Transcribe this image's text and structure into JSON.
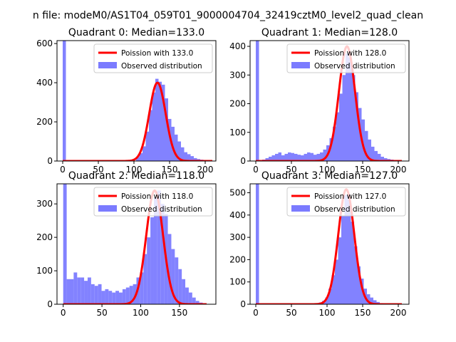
{
  "figure": {
    "suptitle": "n file: modeM0/AS1T04_059T01_9000004704_32419cztM0_level2_quad_clean"
  },
  "colors": {
    "histogram": "#7b7bff",
    "poisson": "#ff0000",
    "axis": "#000000",
    "background": "#ffffff"
  },
  "chart_data": [
    {
      "type": "bar",
      "subtype": "histogram+line",
      "title": "Quadrant 0: Median=133.0",
      "xlim": [
        -8,
        215
      ],
      "ylim": [
        0,
        615
      ],
      "xticks": [
        0,
        50,
        100,
        150,
        200
      ],
      "yticks": [
        0,
        200,
        400,
        600
      ],
      "legend": {
        "placement": "top-right",
        "entries": [
          "Poission with 133.0",
          "Observed distribution"
        ]
      },
      "histogram": {
        "name": "Observed distribution",
        "bin_width": 4.5,
        "bins": [
          {
            "x": 0,
            "count": 615
          },
          {
            "x": 103,
            "count": 20
          },
          {
            "x": 107.5,
            "count": 40
          },
          {
            "x": 112,
            "count": 75
          },
          {
            "x": 116.5,
            "count": 150
          },
          {
            "x": 121,
            "count": 260
          },
          {
            "x": 125.5,
            "count": 350
          },
          {
            "x": 130,
            "count": 420
          },
          {
            "x": 134.5,
            "count": 405
          },
          {
            "x": 139,
            "count": 390
          },
          {
            "x": 143.5,
            "count": 320
          },
          {
            "x": 148,
            "count": 215
          },
          {
            "x": 152.5,
            "count": 175
          },
          {
            "x": 157,
            "count": 135
          },
          {
            "x": 161.5,
            "count": 100
          },
          {
            "x": 166,
            "count": 70
          },
          {
            "x": 170.5,
            "count": 45
          },
          {
            "x": 175,
            "count": 35
          },
          {
            "x": 179.5,
            "count": 25
          },
          {
            "x": 184,
            "count": 15
          },
          {
            "x": 188.5,
            "count": 10
          },
          {
            "x": 193,
            "count": 7
          },
          {
            "x": 197.5,
            "count": 5
          },
          {
            "x": 202,
            "count": 3
          },
          {
            "x": 206.5,
            "count": 2
          }
        ]
      },
      "line": {
        "name": "Poission with 133.0",
        "lambda": 133.0,
        "peak": 400,
        "x_range": [
          0,
          210
        ]
      }
    },
    {
      "type": "bar",
      "subtype": "histogram+line",
      "title": "Quadrant 1: Median=128.0",
      "xlim": [
        -8,
        215
      ],
      "ylim": [
        0,
        420
      ],
      "xticks": [
        0,
        50,
        100,
        150,
        200
      ],
      "yticks": [
        0,
        100,
        200,
        300,
        400
      ],
      "legend": {
        "placement": "top-right",
        "entries": [
          "Poission with 128.0",
          "Observed distribution"
        ]
      },
      "histogram": {
        "name": "Observed distribution",
        "bin_width": 4.5,
        "bins": [
          {
            "x": 0,
            "count": 420
          },
          {
            "x": 9,
            "count": 5
          },
          {
            "x": 13.5,
            "count": 10
          },
          {
            "x": 18,
            "count": 15
          },
          {
            "x": 22.5,
            "count": 20
          },
          {
            "x": 27,
            "count": 25
          },
          {
            "x": 31.5,
            "count": 30
          },
          {
            "x": 36,
            "count": 20
          },
          {
            "x": 40.5,
            "count": 25
          },
          {
            "x": 45,
            "count": 30
          },
          {
            "x": 49.5,
            "count": 28
          },
          {
            "x": 54,
            "count": 25
          },
          {
            "x": 58.5,
            "count": 22
          },
          {
            "x": 63,
            "count": 20
          },
          {
            "x": 67.5,
            "count": 25
          },
          {
            "x": 72,
            "count": 30
          },
          {
            "x": 76.5,
            "count": 28
          },
          {
            "x": 81,
            "count": 22
          },
          {
            "x": 85.5,
            "count": 25
          },
          {
            "x": 90,
            "count": 30
          },
          {
            "x": 94.5,
            "count": 40
          },
          {
            "x": 99,
            "count": 55
          },
          {
            "x": 103.5,
            "count": 80
          },
          {
            "x": 108,
            "count": 120
          },
          {
            "x": 112.5,
            "count": 170
          },
          {
            "x": 117,
            "count": 235
          },
          {
            "x": 121.5,
            "count": 300
          },
          {
            "x": 126,
            "count": 375
          },
          {
            "x": 130.5,
            "count": 360
          },
          {
            "x": 135,
            "count": 300
          },
          {
            "x": 139.5,
            "count": 240
          },
          {
            "x": 144,
            "count": 185
          },
          {
            "x": 148.5,
            "count": 145
          },
          {
            "x": 153,
            "count": 105
          },
          {
            "x": 157.5,
            "count": 75
          },
          {
            "x": 162,
            "count": 50
          },
          {
            "x": 166.5,
            "count": 35
          },
          {
            "x": 171,
            "count": 25
          },
          {
            "x": 175.5,
            "count": 15
          },
          {
            "x": 180,
            "count": 10
          },
          {
            "x": 184.5,
            "count": 7
          },
          {
            "x": 189,
            "count": 5
          },
          {
            "x": 193.5,
            "count": 3
          },
          {
            "x": 198,
            "count": 2
          },
          {
            "x": 202.5,
            "count": 1
          }
        ]
      },
      "line": {
        "name": "Poission with 128.0",
        "lambda": 128.0,
        "peak": 400,
        "x_range": [
          0,
          205
        ]
      }
    },
    {
      "type": "bar",
      "subtype": "histogram+line",
      "title": "Quadrant 2: Median=118.0",
      "xlim": [
        -8,
        197
      ],
      "ylim": [
        0,
        360
      ],
      "xticks": [
        0,
        50,
        100,
        150
      ],
      "yticks": [
        0,
        100,
        200,
        300
      ],
      "legend": {
        "placement": "top-right",
        "entries": [
          "Poission with 118.0",
          "Observed distribution"
        ]
      },
      "histogram": {
        "name": "Observed distribution",
        "bin_width": 4.5,
        "bins": [
          {
            "x": 0,
            "count": 360
          },
          {
            "x": 4.5,
            "count": 75
          },
          {
            "x": 9,
            "count": 75
          },
          {
            "x": 13.5,
            "count": 95
          },
          {
            "x": 18,
            "count": 80
          },
          {
            "x": 22.5,
            "count": 80
          },
          {
            "x": 27,
            "count": 70
          },
          {
            "x": 31.5,
            "count": 80
          },
          {
            "x": 36,
            "count": 60
          },
          {
            "x": 40.5,
            "count": 55
          },
          {
            "x": 45,
            "count": 60
          },
          {
            "x": 49.5,
            "count": 40
          },
          {
            "x": 54,
            "count": 45
          },
          {
            "x": 58.5,
            "count": 40
          },
          {
            "x": 63,
            "count": 35
          },
          {
            "x": 67.5,
            "count": 40
          },
          {
            "x": 72,
            "count": 35
          },
          {
            "x": 76.5,
            "count": 45
          },
          {
            "x": 81,
            "count": 50
          },
          {
            "x": 85.5,
            "count": 55
          },
          {
            "x": 90,
            "count": 60
          },
          {
            "x": 94.5,
            "count": 80
          },
          {
            "x": 99,
            "count": 95
          },
          {
            "x": 103.5,
            "count": 150
          },
          {
            "x": 108,
            "count": 200
          },
          {
            "x": 112.5,
            "count": 260
          },
          {
            "x": 117,
            "count": 320
          },
          {
            "x": 121.5,
            "count": 340
          },
          {
            "x": 126,
            "count": 300
          },
          {
            "x": 130.5,
            "count": 270
          },
          {
            "x": 135,
            "count": 210
          },
          {
            "x": 139.5,
            "count": 165
          },
          {
            "x": 144,
            "count": 140
          },
          {
            "x": 148.5,
            "count": 105
          },
          {
            "x": 153,
            "count": 75
          },
          {
            "x": 157.5,
            "count": 50
          },
          {
            "x": 162,
            "count": 35
          },
          {
            "x": 166.5,
            "count": 20
          },
          {
            "x": 171,
            "count": 10
          },
          {
            "x": 175.5,
            "count": 5
          },
          {
            "x": 180,
            "count": 2
          }
        ]
      },
      "line": {
        "name": "Poission with 118.0",
        "lambda": 118.0,
        "peak": 340,
        "x_range": [
          0,
          185
        ]
      }
    },
    {
      "type": "bar",
      "subtype": "histogram+line",
      "title": "Quadrant 3: Median=127.0",
      "xlim": [
        -8,
        215
      ],
      "ylim": [
        0,
        540
      ],
      "xticks": [
        0,
        50,
        100,
        150,
        200
      ],
      "yticks": [
        0,
        100,
        200,
        300,
        400,
        500
      ],
      "legend": {
        "placement": "top-right",
        "entries": [
          "Poission with 127.0",
          "Observed distribution"
        ]
      },
      "histogram": {
        "name": "Observed distribution",
        "bin_width": 4.5,
        "bins": [
          {
            "x": 0,
            "count": 540
          },
          {
            "x": 84,
            "count": 3
          },
          {
            "x": 88.5,
            "count": 8
          },
          {
            "x": 93,
            "count": 15
          },
          {
            "x": 97.5,
            "count": 30
          },
          {
            "x": 102,
            "count": 70
          },
          {
            "x": 106.5,
            "count": 130
          },
          {
            "x": 111,
            "count": 200
          },
          {
            "x": 115.5,
            "count": 300
          },
          {
            "x": 120,
            "count": 395
          },
          {
            "x": 124.5,
            "count": 490
          },
          {
            "x": 129,
            "count": 470
          },
          {
            "x": 133.5,
            "count": 370
          },
          {
            "x": 138,
            "count": 260
          },
          {
            "x": 142.5,
            "count": 170
          },
          {
            "x": 147,
            "count": 115
          },
          {
            "x": 151.5,
            "count": 70
          },
          {
            "x": 156,
            "count": 45
          },
          {
            "x": 160.5,
            "count": 30
          },
          {
            "x": 165,
            "count": 18
          },
          {
            "x": 169.5,
            "count": 10
          },
          {
            "x": 174,
            "count": 5
          },
          {
            "x": 178.5,
            "count": 3
          }
        ]
      },
      "line": {
        "name": "Poission with 127.0",
        "lambda": 127.0,
        "peak": 515,
        "x_range": [
          0,
          205
        ]
      }
    }
  ]
}
